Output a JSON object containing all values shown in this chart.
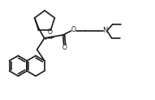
{
  "bg_color": "#ffffff",
  "line_color": "#1a1a1a",
  "lw": 1.2,
  "figsize": [
    1.91,
    1.23
  ],
  "dpi": 100,
  "xlim": [
    0,
    191
  ],
  "ylim": [
    0,
    123
  ]
}
